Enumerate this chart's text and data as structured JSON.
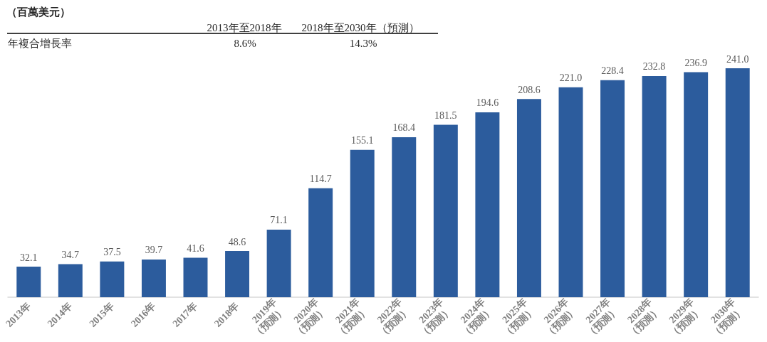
{
  "chart_data": {
    "type": "bar",
    "title": "（百萬美元）",
    "annotations": [
      "2013年至2018年",
      "2018年至2030年（預測）",
      "年複合增長率",
      "8.6%",
      "14.3%"
    ],
    "categories": [
      "2013年",
      "2014年",
      "2015年",
      "2016年",
      "2017年",
      "2018年",
      "2019年\n（預測）",
      "2020年\n（預測）",
      "2021年\n（預測）",
      "2022年\n（預測）",
      "2023年\n（預測）",
      "2024年\n（預測）",
      "2025年\n（預測）",
      "2026年\n（預測）",
      "2027年\n（預測）",
      "2028年\n（預測）",
      "2029年\n（預測）",
      "2030年\n（預測）"
    ],
    "values": [
      32.1,
      34.7,
      37.5,
      39.7,
      41.6,
      48.6,
      71.1,
      114.7,
      155.1,
      168.4,
      181.5,
      194.6,
      208.6,
      221.0,
      228.4,
      232.8,
      236.9,
      241.0
    ],
    "value_labels": [
      "32.1",
      "34.7",
      "37.5",
      "39.7",
      "41.6",
      "48.6",
      "71.1",
      "114.7",
      "155.1",
      "168.4",
      "181.5",
      "194.6",
      "208.6",
      "221.0",
      "228.4",
      "232.8",
      "236.9",
      "241.0"
    ],
    "color": "#2c5c9d"
  }
}
